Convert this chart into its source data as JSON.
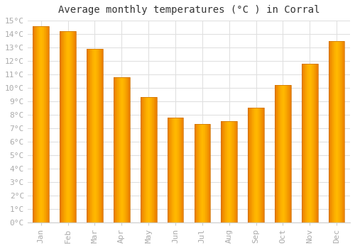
{
  "title": "Average monthly temperatures (°C ) in Corral",
  "months": [
    "Jan",
    "Feb",
    "Mar",
    "Apr",
    "May",
    "Jun",
    "Jul",
    "Aug",
    "Sep",
    "Oct",
    "Nov",
    "Dec"
  ],
  "values": [
    14.6,
    14.2,
    12.9,
    10.8,
    9.3,
    7.8,
    7.3,
    7.5,
    8.5,
    10.2,
    11.8,
    13.5
  ],
  "bar_color_center": "#FFB700",
  "bar_color_edge": "#E87800",
  "ylim": [
    0,
    15
  ],
  "background_color": "#ffffff",
  "grid_color": "#e0e0e0",
  "title_fontsize": 10,
  "tick_fontsize": 8,
  "tick_color": "#aaaaaa",
  "font_family": "monospace"
}
